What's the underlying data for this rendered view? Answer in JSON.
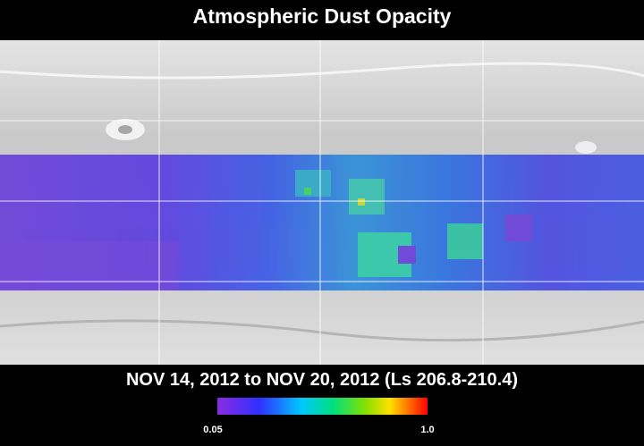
{
  "header": {
    "title": "Atmospheric Dust Opacity"
  },
  "footer": {
    "date_range": "NOV 14, 2012 to NOV 20, 2012 (Ls 206.8-210.4)"
  },
  "colorbar": {
    "min_label": "0.05",
    "max_label": "1.0"
  }
}
